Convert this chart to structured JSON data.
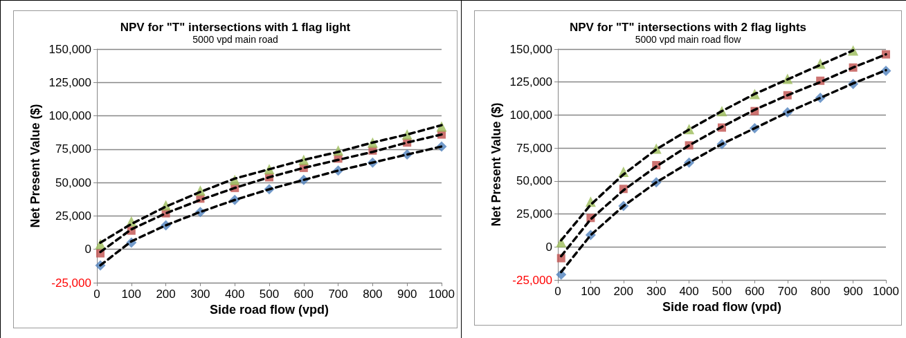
{
  "chart_data": [
    {
      "type": "scatter",
      "title": "NPV for \"T\" intersections with 1 flag light",
      "subtitle": "5000 vpd main road",
      "xlabel": "Side road flow (vpd)",
      "ylabel": "Net Present Value ($)",
      "x": [
        10,
        100,
        200,
        300,
        400,
        500,
        600,
        700,
        800,
        900,
        1000
      ],
      "series": [
        {
          "color": "#4f81bd",
          "marker": "diamond",
          "values": [
            -12000,
            5000,
            18000,
            28000,
            37000,
            45000,
            52000,
            59000,
            65000,
            71000,
            77000
          ]
        },
        {
          "color": "#c0504d",
          "marker": "square",
          "values": [
            -3000,
            14000,
            27000,
            38000,
            46000,
            54000,
            61000,
            68000,
            74000,
            80000,
            86000
          ]
        },
        {
          "color": "#9bbb59",
          "marker": "triangle",
          "values": [
            4000,
            21000,
            33000,
            44000,
            52000,
            60000,
            67000,
            74000,
            80000,
            86000,
            92000
          ]
        },
        {
          "type": "line",
          "color": "#000000",
          "line_style": "dashed",
          "marker": "none",
          "values": [
            -12000,
            6000,
            18000,
            28000,
            37000,
            45000,
            52000,
            59000,
            65000,
            71000,
            77000
          ]
        },
        {
          "type": "line",
          "color": "#000000",
          "line_style": "dashed",
          "marker": "none",
          "values": [
            -2000,
            15000,
            27000,
            37000,
            46000,
            54000,
            61000,
            67000,
            73000,
            80000,
            86000
          ]
        },
        {
          "type": "line",
          "color": "#000000",
          "line_style": "dashed",
          "marker": "none",
          "values": [
            5000,
            19000,
            32000,
            43000,
            53000,
            60000,
            67000,
            73000,
            80000,
            86000,
            93000
          ]
        }
      ],
      "xlim": [
        0,
        1000
      ],
      "xticks": [
        0,
        100,
        200,
        300,
        400,
        500,
        600,
        700,
        800,
        900,
        1000
      ],
      "ylim": [
        -25000,
        150000
      ],
      "yticks": [
        {
          "value": -25000,
          "label": "-25,000"
        },
        {
          "value": 0,
          "label": "0"
        },
        {
          "value": 25000,
          "label": "25,000"
        },
        {
          "value": 50000,
          "label": "50,000"
        },
        {
          "value": 75000,
          "label": "75,000"
        },
        {
          "value": 100000,
          "label": "100,000"
        },
        {
          "value": 125000,
          "label": "125,000"
        },
        {
          "value": 150000,
          "label": "150,000"
        }
      ],
      "grid": "y"
    },
    {
      "type": "scatter",
      "title": "NPV for \"T\" intersections with 2 flag lights",
      "subtitle": "5000 vpd main road flow",
      "xlabel": "Side road flow (vpd)",
      "ylabel": "Net Present Value ($)",
      "x": [
        10,
        100,
        200,
        300,
        400,
        500,
        600,
        700,
        800,
        900,
        1000
      ],
      "series": [
        {
          "color": "#4f81bd",
          "marker": "diamond",
          "values": [
            -21000,
            9000,
            31000,
            49000,
            64000,
            78000,
            90000,
            102000,
            113000,
            123500,
            133500
          ]
        },
        {
          "color": "#c0504d",
          "marker": "square",
          "values": [
            -8500,
            22000,
            44000,
            62000,
            77000,
            90500,
            103000,
            115000,
            126000,
            136000,
            146000
          ]
        },
        {
          "color": "#9bbb59",
          "marker": "triangle",
          "values": [
            3600,
            34300,
            57000,
            74600,
            89400,
            103000,
            116000,
            127500,
            139000,
            149000,
            null
          ]
        },
        {
          "type": "line",
          "color": "#000000",
          "line_style": "dashed",
          "marker": "none",
          "values": [
            -19000,
            9000,
            31000,
            49000,
            64000,
            78000,
            90000,
            102000,
            113000,
            124000,
            134000
          ]
        },
        {
          "type": "line",
          "color": "#000000",
          "line_style": "dashed",
          "marker": "none",
          "values": [
            -7000,
            21000,
            43000,
            61000,
            77000,
            91000,
            104000,
            115000,
            125000,
            136000,
            146000
          ]
        },
        {
          "type": "line",
          "color": "#000000",
          "line_style": "dashed",
          "marker": "none",
          "values": [
            5000,
            32000,
            55000,
            74000,
            89000,
            103000,
            116000,
            127000,
            138000,
            149000,
            null
          ]
        }
      ],
      "xlim": [
        0,
        1000
      ],
      "xticks": [
        0,
        100,
        200,
        300,
        400,
        500,
        600,
        700,
        800,
        900,
        1000
      ],
      "ylim": [
        -25000,
        150000
      ],
      "yticks": [
        {
          "value": -25000,
          "label": "-25,000"
        },
        {
          "value": 0,
          "label": "0"
        },
        {
          "value": 25000,
          "label": "25,000"
        },
        {
          "value": 50000,
          "label": "50,000"
        },
        {
          "value": 75000,
          "label": "75,000"
        },
        {
          "value": 100000,
          "label": "100,000"
        },
        {
          "value": 125000,
          "label": "125,000"
        },
        {
          "value": 150000,
          "label": "150,000"
        }
      ],
      "grid": "y"
    }
  ]
}
